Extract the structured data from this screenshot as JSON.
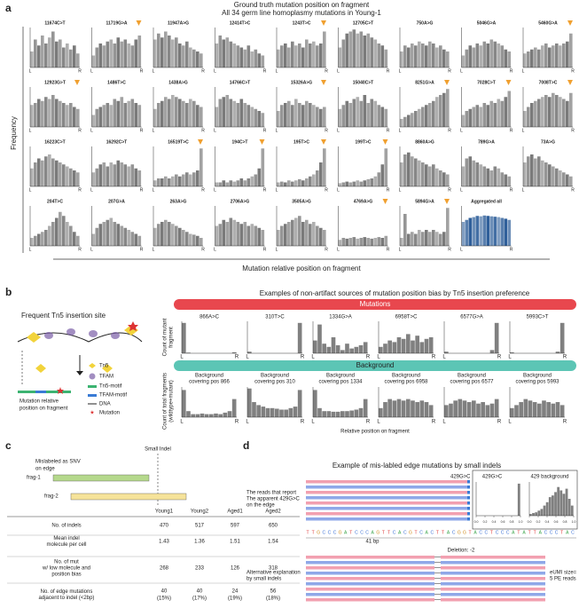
{
  "panel_a": {
    "letter": "a",
    "title": "Ground truth mutation position on fragment",
    "subtitle": "All 34 germ line homoplasmy mutations in Young-1",
    "ylabel": "Frequency",
    "xlabel": "Mutation relative position on fragment",
    "left": "L",
    "right": "R",
    "ylim": [
      0,
      100
    ],
    "color": "#7a7a7a",
    "marker_color": "#f0a030",
    "plots": [
      {
        "label": "11674C>T",
        "marked": false,
        "values": [
          40,
          70,
          55,
          80,
          60,
          75,
          90,
          65,
          70,
          50,
          60,
          45,
          55,
          35
        ]
      },
      {
        "label": "11719G>A",
        "marked": true,
        "values": [
          30,
          50,
          60,
          55,
          65,
          70,
          60,
          75,
          65,
          70,
          60,
          55,
          70,
          80
        ]
      },
      {
        "label": "11947A>G",
        "marked": false,
        "values": [
          70,
          85,
          75,
          90,
          80,
          70,
          75,
          60,
          55,
          65,
          50,
          45,
          40,
          35
        ]
      },
      {
        "label": "12414T>C",
        "marked": false,
        "values": [
          60,
          80,
          70,
          75,
          65,
          60,
          55,
          50,
          45,
          55,
          40,
          45,
          35,
          30
        ]
      },
      {
        "label": "1243T>C",
        "marked": true,
        "values": [
          45,
          55,
          60,
          50,
          65,
          55,
          60,
          50,
          70,
          60,
          65,
          55,
          60,
          90
        ]
      },
      {
        "label": "12705C>T",
        "marked": false,
        "values": [
          50,
          70,
          85,
          90,
          95,
          85,
          90,
          80,
          85,
          75,
          70,
          60,
          55,
          45
        ]
      },
      {
        "label": "750A>G",
        "marked": false,
        "values": [
          40,
          55,
          50,
          60,
          55,
          65,
          60,
          55,
          65,
          60,
          50,
          55,
          45,
          40
        ]
      },
      {
        "label": "5046G>A",
        "marked": false,
        "values": [
          30,
          45,
          55,
          50,
          60,
          55,
          65,
          60,
          70,
          65,
          60,
          55,
          45,
          40
        ]
      },
      {
        "label": "5460G>A",
        "marked": true,
        "values": [
          35,
          40,
          45,
          50,
          45,
          55,
          60,
          50,
          55,
          60,
          55,
          60,
          65,
          85
        ]
      },
      {
        "label": "12923G>T",
        "marked": true,
        "values": [
          55,
          60,
          70,
          65,
          75,
          70,
          80,
          70,
          65,
          60,
          55,
          60,
          50,
          45
        ]
      },
      {
        "label": "1486T>C",
        "marked": false,
        "values": [
          30,
          45,
          50,
          55,
          60,
          55,
          70,
          65,
          75,
          60,
          65,
          70,
          60,
          55
        ]
      },
      {
        "label": "1438A>G",
        "marked": false,
        "values": [
          45,
          60,
          65,
          75,
          70,
          80,
          75,
          70,
          65,
          60,
          70,
          65,
          55,
          50
        ]
      },
      {
        "label": "14766C>T",
        "marked": false,
        "values": [
          50,
          70,
          75,
          80,
          70,
          65,
          60,
          70,
          60,
          55,
          50,
          45,
          40,
          35
        ]
      },
      {
        "label": "15326A>G",
        "marked": true,
        "values": [
          40,
          55,
          60,
          65,
          55,
          70,
          60,
          55,
          65,
          60,
          55,
          50,
          45,
          50
        ]
      },
      {
        "label": "15040C>T",
        "marked": false,
        "values": [
          45,
          55,
          65,
          60,
          70,
          75,
          65,
          80,
          60,
          70,
          65,
          55,
          50,
          45
        ]
      },
      {
        "label": "8251G>A",
        "marked": true,
        "values": [
          20,
          25,
          30,
          35,
          40,
          45,
          50,
          55,
          60,
          65,
          75,
          80,
          85,
          95
        ]
      },
      {
        "label": "7028C>T",
        "marked": true,
        "values": [
          30,
          40,
          45,
          50,
          55,
          50,
          60,
          55,
          65,
          60,
          70,
          65,
          75,
          90
        ]
      },
      {
        "label": "7008T>C",
        "marked": true,
        "values": [
          40,
          50,
          60,
          65,
          70,
          75,
          80,
          75,
          85,
          80,
          75,
          70,
          65,
          85
        ]
      },
      {
        "label": "16223C>T",
        "marked": false,
        "values": [
          45,
          60,
          70,
          65,
          75,
          80,
          70,
          65,
          60,
          55,
          50,
          45,
          40,
          35
        ]
      },
      {
        "label": "16292C>T",
        "marked": false,
        "values": [
          35,
          45,
          55,
          60,
          50,
          60,
          55,
          65,
          60,
          55,
          50,
          55,
          45,
          40
        ]
      },
      {
        "label": "16519T>C",
        "marked": true,
        "values": [
          15,
          20,
          20,
          25,
          20,
          25,
          30,
          25,
          30,
          35,
          30,
          35,
          40,
          95
        ]
      },
      {
        "label": "194C>T",
        "marked": true,
        "values": [
          10,
          10,
          15,
          10,
          15,
          12,
          15,
          20,
          15,
          20,
          25,
          30,
          45,
          95
        ]
      },
      {
        "label": "195T>C",
        "marked": true,
        "values": [
          10,
          12,
          10,
          15,
          12,
          15,
          18,
          15,
          20,
          25,
          30,
          40,
          60,
          95
        ]
      },
      {
        "label": "199T>C",
        "marked": true,
        "values": [
          8,
          10,
          12,
          10,
          12,
          15,
          12,
          15,
          18,
          20,
          25,
          35,
          55,
          95
        ]
      },
      {
        "label": "8860A>G",
        "marked": false,
        "values": [
          60,
          80,
          85,
          75,
          70,
          65,
          60,
          55,
          50,
          55,
          45,
          40,
          35,
          30
        ]
      },
      {
        "label": "789G>A",
        "marked": false,
        "values": [
          50,
          70,
          75,
          65,
          60,
          55,
          50,
          45,
          40,
          50,
          45,
          35,
          30,
          25
        ]
      },
      {
        "label": "73A>G",
        "marked": false,
        "values": [
          60,
          75,
          80,
          70,
          75,
          65,
          60,
          55,
          50,
          45,
          40,
          35,
          30,
          25
        ]
      },
      {
        "label": "204T>C",
        "marked": false,
        "values": [
          20,
          25,
          30,
          35,
          40,
          50,
          60,
          70,
          85,
          75,
          60,
          50,
          35,
          25
        ]
      },
      {
        "label": "207G>A",
        "marked": false,
        "values": [
          30,
          45,
          55,
          60,
          65,
          70,
          60,
          55,
          50,
          45,
          40,
          35,
          30,
          25
        ]
      },
      {
        "label": "263A>G",
        "marked": false,
        "values": [
          45,
          55,
          60,
          65,
          60,
          55,
          50,
          45,
          40,
          35,
          30,
          28,
          25,
          20
        ]
      },
      {
        "label": "2706A>G",
        "marked": false,
        "values": [
          50,
          55,
          65,
          60,
          70,
          65,
          60,
          55,
          60,
          50,
          55,
          50,
          45,
          40
        ]
      },
      {
        "label": "3505A>G",
        "marked": false,
        "values": [
          40,
          50,
          55,
          60,
          65,
          70,
          75,
          60,
          65,
          55,
          60,
          50,
          45,
          40
        ]
      },
      {
        "label": "4769A>G",
        "marked": true,
        "values": [
          15,
          20,
          18,
          20,
          22,
          18,
          20,
          22,
          20,
          18,
          20,
          22,
          20,
          25
        ]
      },
      {
        "label": "5894G>A",
        "marked": true,
        "values": [
          20,
          80,
          30,
          35,
          30,
          40,
          35,
          40,
          35,
          40,
          35,
          30,
          35,
          95
        ]
      },
      {
        "label": "Aggregated all",
        "marked": false,
        "color": "#2f5f9a",
        "values": [
          60,
          65,
          70,
          72,
          75,
          74,
          76,
          75,
          74,
          73,
          72,
          70,
          68,
          65
        ]
      }
    ]
  },
  "panel_b": {
    "letter": "b",
    "diagram_title": "Frequent Tn5 insertion site",
    "legend": [
      "Tn5",
      "TFAM",
      "Tn5-motif",
      "TFAM-motif",
      "DNA",
      "Mutation"
    ],
    "diagram_caption": [
      "Mutation relative",
      "position on fragment"
    ],
    "title": "Examples of non-artifact sources of mutation position bias by Tn5 insertion preference",
    "mutations_banner": "Mutations",
    "background_banner": "Background",
    "mut_ylabel": [
      "Count of mutant",
      "fragment"
    ],
    "bg_ylabel": [
      "Count of total fragments",
      "(wildtype+mutant)"
    ],
    "xlabel": "Relative position on fragment",
    "left": "L",
    "right": "R",
    "ylim": [
      0,
      100
    ],
    "color": "#808080",
    "mutations": [
      {
        "label": "866A>C",
        "values": [
          95,
          2,
          0,
          0,
          0,
          0,
          0,
          0,
          0,
          0,
          0,
          3
        ]
      },
      {
        "label": "310T>C",
        "values": [
          5,
          0,
          0,
          0,
          0,
          0,
          0,
          0,
          0,
          0,
          0,
          95
        ]
      },
      {
        "label": "1334G>A",
        "values": [
          40,
          90,
          30,
          20,
          50,
          25,
          10,
          30,
          15,
          20,
          25,
          35
        ]
      },
      {
        "label": "6958T>C",
        "values": [
          20,
          30,
          40,
          35,
          50,
          45,
          60,
          40,
          55,
          35,
          45,
          50
        ]
      },
      {
        "label": "6577G>A",
        "values": [
          5,
          0,
          0,
          0,
          0,
          0,
          0,
          0,
          0,
          0,
          10,
          95
        ]
      },
      {
        "label": "5993C>T",
        "values": [
          3,
          0,
          0,
          0,
          0,
          0,
          0,
          0,
          0,
          0,
          5,
          95
        ]
      }
    ],
    "background": [
      {
        "label": [
          "Background",
          "covering pos 866"
        ],
        "values": [
          90,
          20,
          10,
          10,
          12,
          10,
          10,
          12,
          10,
          15,
          20,
          60
        ]
      },
      {
        "label": [
          "Background",
          "covering pos 310"
        ],
        "values": [
          95,
          50,
          40,
          35,
          30,
          30,
          28,
          25,
          25,
          30,
          35,
          90
        ]
      },
      {
        "label": [
          "Background",
          "covering pos 1334"
        ],
        "values": [
          90,
          30,
          20,
          20,
          18,
          18,
          20,
          20,
          22,
          25,
          30,
          60
        ]
      },
      {
        "label": [
          "Background",
          "covering pos 6958"
        ],
        "values": [
          30,
          50,
          60,
          55,
          60,
          55,
          60,
          55,
          50,
          55,
          50,
          40
        ]
      },
      {
        "label": [
          "Background",
          "covering pos 6577"
        ],
        "values": [
          40,
          45,
          55,
          60,
          55,
          50,
          55,
          45,
          50,
          40,
          45,
          60
        ]
      },
      {
        "label": [
          "Background",
          "covering pos 5993"
        ],
        "values": [
          30,
          40,
          50,
          60,
          55,
          50,
          45,
          55,
          50,
          45,
          50,
          40
        ]
      }
    ]
  },
  "panel_c": {
    "letter": "c",
    "small_indel": "Small Indel",
    "mislabeled": [
      "Mislabeled as SNV",
      "on edge"
    ],
    "frags": [
      "frag-1",
      "frag-2"
    ],
    "columns": [
      "Young1",
      "Young2",
      "Aged1",
      "Aged2"
    ],
    "rows": [
      {
        "label": [
          "No. of indels"
        ],
        "cells": [
          "470",
          "517",
          "597",
          "650"
        ]
      },
      {
        "label": [
          "Mean indel",
          "molecule per cell"
        ],
        "cells": [
          "1.43",
          "1.36",
          "1.51",
          "1.54"
        ]
      },
      {
        "label": [
          "No. of mut",
          "w/ low molecule and",
          "position bias"
        ],
        "cells": [
          "268",
          "233",
          "126",
          "318"
        ]
      },
      {
        "label": [
          "No. of edge mutations",
          "adjacent to indel (<2bp)"
        ],
        "cells": [
          "40",
          "40",
          "24",
          "56"
        ],
        "notes": [
          "(15%)",
          "(17%)",
          "(19%)",
          "(18%)"
        ]
      }
    ]
  },
  "panel_d": {
    "letter": "d",
    "title": "Example of mis-labled edge mutations by small indels",
    "reads_label": [
      "The reads that report",
      "The apparent 429G>C",
      "on the edge"
    ],
    "mutation": "429G>C",
    "inset_titles": [
      "429G>C",
      "429 background"
    ],
    "inset_ylim": [
      0,
      100
    ],
    "inset_xticks": [
      {
        "value": 0,
        "label": "0.0"
      },
      {
        "value": 0.2,
        "label": "0.2"
      },
      {
        "value": 0.4,
        "label": "0.4"
      },
      {
        "value": 0.6,
        "label": "0.6"
      },
      {
        "value": 0.8,
        "label": "0.8"
      },
      {
        "value": 1,
        "label": "1.0"
      }
    ],
    "inset_mut_values": [
      0,
      0,
      0,
      0,
      0,
      0,
      0,
      0,
      0,
      0,
      0,
      0,
      0,
      0,
      0,
      95
    ],
    "inset_bg_values": [
      5,
      8,
      10,
      15,
      20,
      30,
      40,
      55,
      60,
      70,
      85,
      75,
      65,
      80,
      50,
      30
    ],
    "sequence": "TTGCCCGATCCCAGTTCACGTCACTTACGGTACCTCCCATATTACCCTAC",
    "span": "41 bp",
    "deletion": "Deletion: -2",
    "alt_label": [
      "Alternative explanation",
      "by small indels"
    ],
    "eumi": [
      "eUMI size=",
      "5 PE reads"
    ]
  }
}
